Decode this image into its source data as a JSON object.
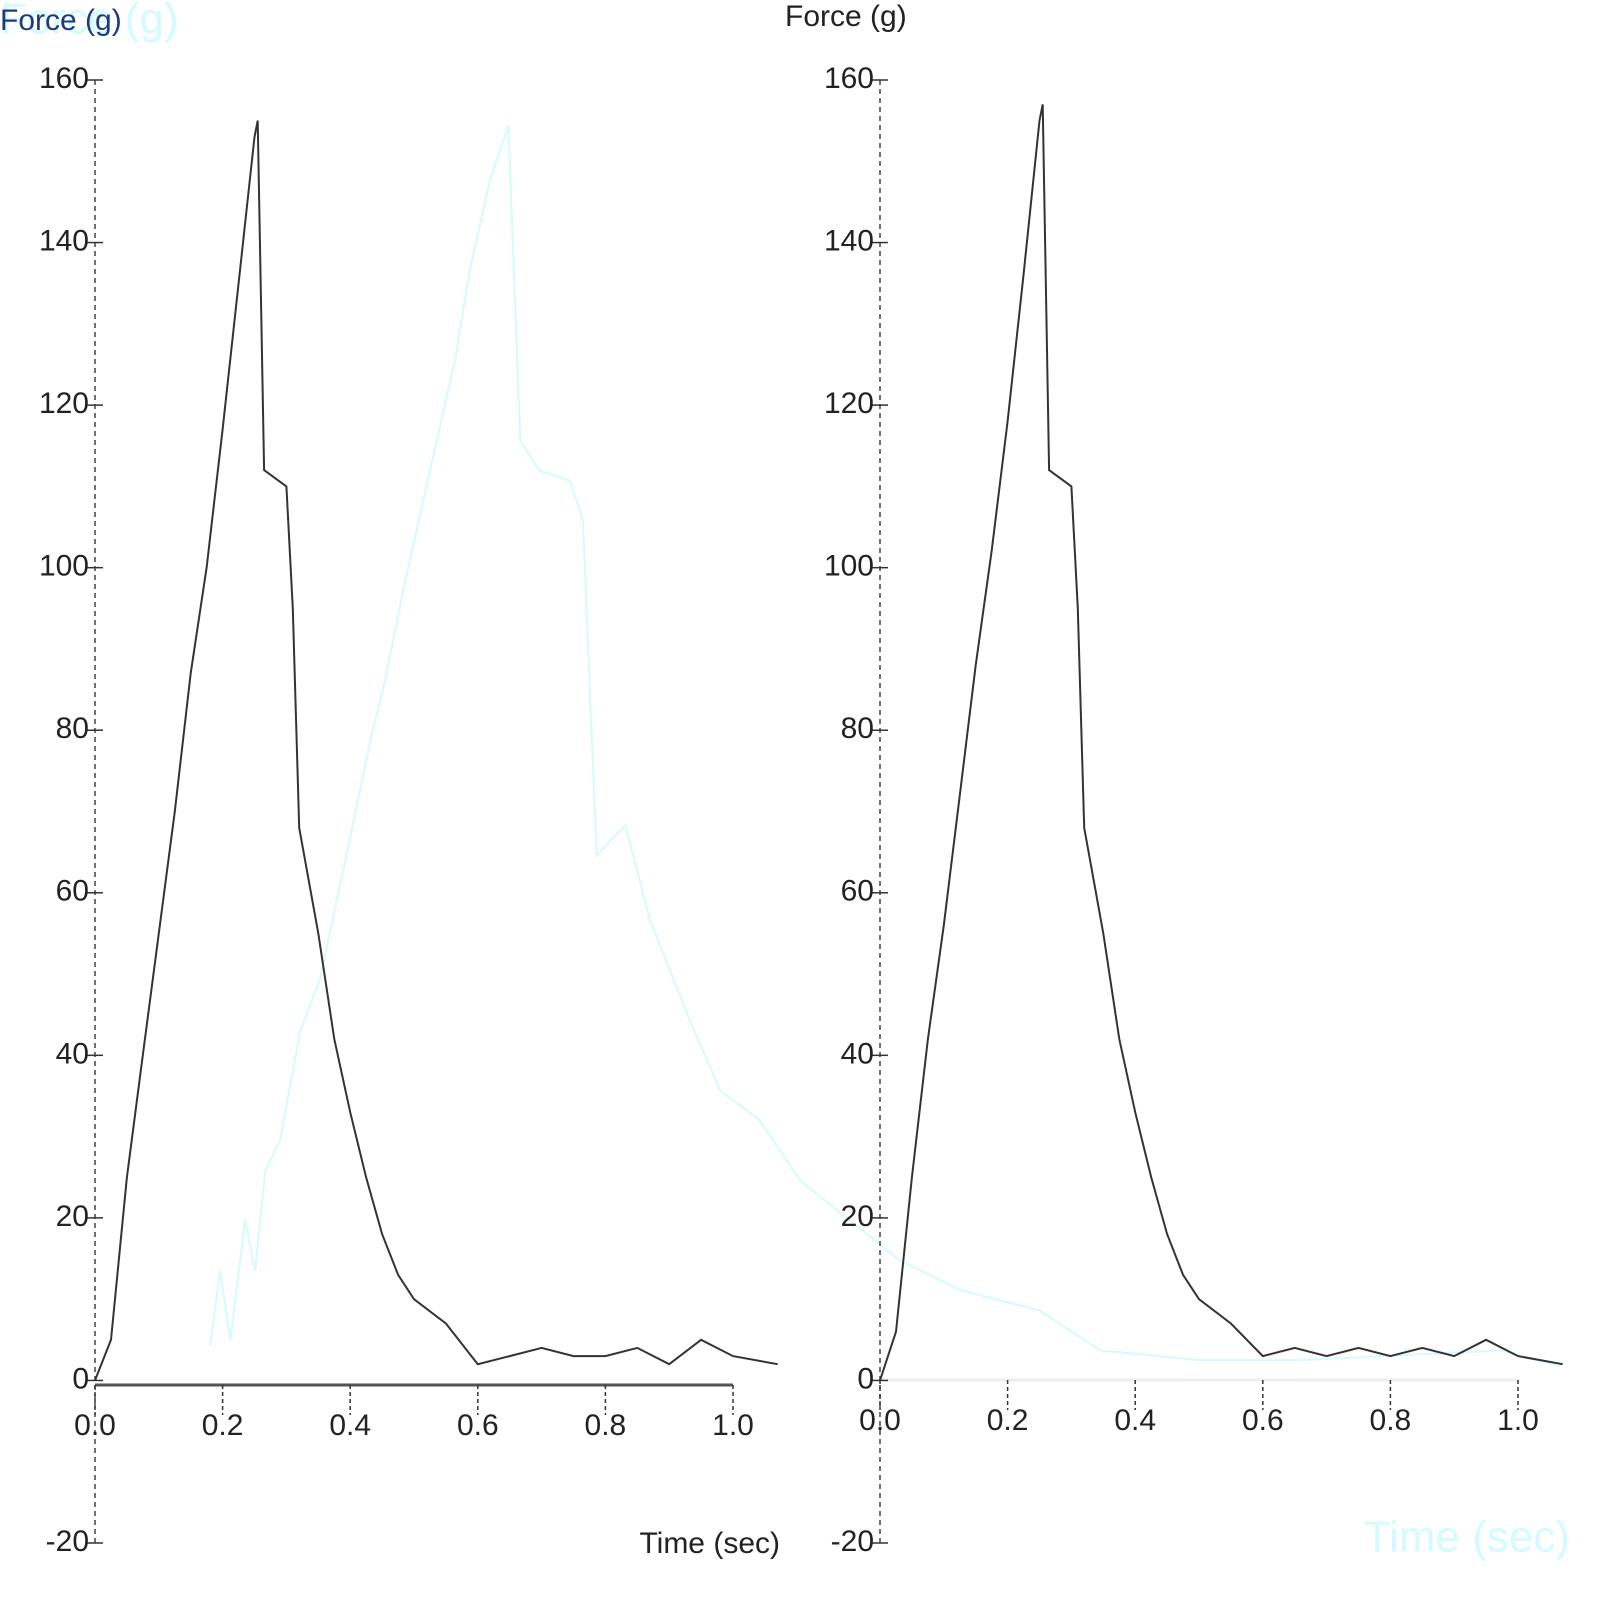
{
  "chart_data": [
    {
      "type": "line",
      "title": "Force (g)",
      "x_label": "Time (sec)",
      "xlim": [
        0,
        1.0
      ],
      "xticks": [
        {
          "value": 0,
          "label": "0.0"
        },
        0.2,
        0.4,
        0.6,
        0.8,
        {
          "value": 1,
          "label": "1.0"
        }
      ],
      "ylim": [
        -20,
        160
      ],
      "yticks": [
        -20,
        0,
        20,
        40,
        60,
        80,
        100,
        120,
        140,
        160
      ],
      "series": [
        {
          "name": "Force",
          "color": "#333333",
          "x": [
            0,
            0.025,
            0.05,
            0.075,
            0.1,
            0.125,
            0.15,
            0.175,
            0.2,
            0.225,
            0.25,
            0.255,
            0.265,
            0.3,
            0.31,
            0.32,
            0.35,
            0.375,
            0.4,
            0.425,
            0.45,
            0.475,
            0.5,
            0.55,
            0.6,
            0.65,
            0.7,
            0.75,
            0.8,
            0.85,
            0.9,
            0.95,
            1.0,
            1.07
          ],
          "values": [
            0,
            5,
            25,
            40,
            55,
            70,
            87,
            100,
            117,
            135,
            153,
            155,
            112,
            110,
            95,
            68,
            55,
            42,
            33,
            25,
            18,
            13,
            10,
            7,
            2,
            3,
            4,
            3,
            3,
            4,
            2,
            5,
            3,
            2
          ]
        }
      ]
    },
    {
      "type": "line",
      "title": "Force (g)",
      "xlim": [
        0,
        1.0
      ],
      "xticks": [
        {
          "value": 0,
          "label": "0.0"
        },
        0.2,
        0.4,
        0.6,
        0.8,
        {
          "value": 1,
          "label": "1.0"
        }
      ],
      "ylim": [
        -20,
        160
      ],
      "yticks": [
        -20,
        0,
        20,
        40,
        60,
        80,
        100,
        120,
        140,
        160
      ],
      "series": [
        {
          "name": "Force",
          "color": "#333333",
          "x": [
            0,
            0.025,
            0.05,
            0.075,
            0.1,
            0.125,
            0.15,
            0.175,
            0.2,
            0.225,
            0.25,
            0.255,
            0.265,
            0.3,
            0.31,
            0.32,
            0.35,
            0.375,
            0.4,
            0.425,
            0.45,
            0.475,
            0.5,
            0.55,
            0.6,
            0.65,
            0.7,
            0.75,
            0.8,
            0.85,
            0.9,
            0.95,
            1.0,
            1.07
          ],
          "values": [
            0,
            6,
            25,
            42,
            56,
            72,
            88,
            102,
            118,
            136,
            155,
            157,
            112,
            110,
            95,
            68,
            55,
            42,
            33,
            25,
            18,
            13,
            10,
            7,
            3,
            4,
            3,
            4,
            3,
            4,
            3,
            5,
            3,
            2
          ]
        }
      ]
    },
    {
      "type": "line",
      "title": "Force (g)",
      "x_label": "Time (sec)",
      "xlim": [
        0,
        1.6
      ],
      "ylim": [
        -20,
        160
      ],
      "series": [
        {
          "name": "Force",
          "color": "#d4fbff",
          "x": [
            0.125,
            0.136,
            0.147,
            0.163,
            0.174,
            0.185,
            0.201,
            0.223,
            0.244,
            0.272,
            0.299,
            0.315,
            0.337,
            0.364,
            0.391,
            0.407,
            0.429,
            0.449,
            0.462,
            0.483,
            0.516,
            0.53,
            0.545,
            0.576,
            0.603,
            0.646,
            0.679,
            0.722,
            0.766,
            0.82,
            0.874,
            0.94,
            1.026,
            1.092,
            1.2,
            1.309,
            1.418,
            1.526,
            1.591
          ],
          "values": [
            4.3,
            13.5,
            4.9,
            19.7,
            13.5,
            25.8,
            29.5,
            43,
            49.2,
            64,
            78.7,
            86.1,
            98.4,
            112,
            125.5,
            136.5,
            147.6,
            154.4,
            115.6,
            111.9,
            110.7,
            105.8,
            64.6,
            68.3,
            56.6,
            44.3,
            35.7,
            32,
            24.6,
            19.7,
            14.8,
            11.1,
            8.6,
            3.7,
            2.5,
            2.5,
            3.1,
            3.7,
            1.8
          ]
        }
      ]
    }
  ]
}
